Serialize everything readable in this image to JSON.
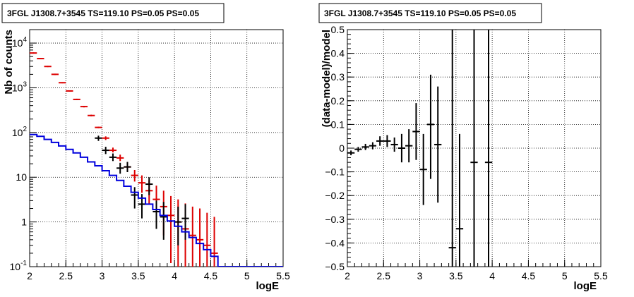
{
  "chart_data": [
    {
      "type": "scatter",
      "title": "3FGL J1308.7+3545 TS=119.10 PS=0.05 PS=0.05",
      "xlabel": "logE",
      "ylabel": "Nb of counts",
      "xlim": [
        2,
        5.5
      ],
      "ylim": [
        0.1,
        20000
      ],
      "yscale": "log",
      "grid": true,
      "x_ticks": [
        "2",
        "2.5",
        "3",
        "3.5",
        "4",
        "4.5",
        "5",
        "5.5"
      ],
      "y_ticks": [
        "10^{-1}",
        "1",
        "10",
        "10^{2}",
        "10^{3}",
        "10^{4}"
      ],
      "series": [
        {
          "color": "#dd0000",
          "style": "points-with-errors",
          "x": [
            2.05,
            2.15,
            2.25,
            2.35,
            2.45,
            2.55,
            2.65,
            2.75,
            2.85,
            2.95,
            3.05,
            3.15,
            3.25,
            3.35,
            3.45,
            3.55,
            3.65,
            3.75,
            3.85,
            3.95,
            4.05,
            4.15,
            4.25,
            4.35,
            4.45,
            4.55
          ],
          "y": [
            6000,
            4500,
            3000,
            2000,
            1300,
            850,
            550,
            380,
            240,
            130,
            75,
            40,
            27,
            17,
            11,
            7.5,
            5,
            3.2,
            2.2,
            1.4,
            1.0,
            0.7,
            0.5,
            0.4,
            0.3,
            0.2
          ],
          "y_low": [
            5800,
            4380,
            2900,
            1930,
            1260,
            820,
            530,
            365,
            230,
            125,
            68,
            36,
            23,
            13,
            8,
            4.5,
            2.5,
            1.3,
            0.5,
            0.12,
            0.1,
            0.1,
            0.1,
            0.1,
            0.1,
            0.1
          ],
          "y_high": [
            6200,
            4620,
            3100,
            2070,
            1340,
            880,
            570,
            395,
            250,
            135,
            82,
            46,
            32,
            22,
            14.5,
            11,
            8.5,
            6.5,
            5,
            3.8,
            3.2,
            2.6,
            2.2,
            2.0,
            1.6,
            1.3
          ]
        },
        {
          "color": "#000000",
          "style": "points-with-errors",
          "x": [
            2.95,
            3.05,
            3.15,
            3.25,
            3.35,
            3.45,
            3.55,
            3.65,
            3.75,
            3.85,
            4.05,
            4.15
          ],
          "y": [
            75,
            40,
            28,
            16,
            17,
            4,
            2.5,
            7,
            1.7,
            1.3,
            1,
            1.2
          ],
          "y_low": [
            65,
            33,
            23,
            12,
            13,
            2,
            1.2,
            4,
            0.7,
            0.4,
            0.3,
            0.4
          ],
          "y_high": [
            85,
            48,
            34,
            21,
            22,
            6,
            4.2,
            10,
            3,
            2.8,
            2.2,
            2.5
          ]
        },
        {
          "color": "#0000dd",
          "style": "step",
          "edges": [
            2.0,
            2.1,
            2.2,
            2.3,
            2.4,
            2.5,
            2.6,
            2.7,
            2.8,
            2.9,
            3.0,
            3.1,
            3.2,
            3.3,
            3.4,
            3.5,
            3.6,
            3.7,
            3.8,
            3.9,
            4.0,
            4.1,
            4.2,
            4.3,
            4.4,
            4.5,
            4.6,
            5.5
          ],
          "values": [
            90,
            82,
            70,
            60,
            50,
            42,
            35,
            28,
            22,
            18,
            14,
            11,
            8.5,
            6.3,
            4.6,
            3.4,
            2.5,
            1.9,
            1.4,
            1.05,
            0.8,
            0.6,
            0.45,
            0.33,
            0.24,
            0.17,
            0.1
          ]
        }
      ]
    },
    {
      "type": "scatter",
      "title": "3FGL J1308.7+3545 TS=119.10 PS=0.05 PS=0.05",
      "xlabel": "logE",
      "ylabel": "(data-model)/model",
      "xlim": [
        2,
        5.5
      ],
      "ylim": [
        -0.5,
        0.5
      ],
      "grid": true,
      "x_ticks": [
        "2",
        "2.5",
        "3",
        "3.5",
        "4",
        "4.5",
        "5",
        "5.5"
      ],
      "y_ticks": [
        "−0.5",
        "−0.4",
        "−0.3",
        "−0.2",
        "−0.1",
        "0",
        "0.1",
        "0.2",
        "0.3",
        "0.4",
        "0.5"
      ],
      "series": [
        {
          "color": "#000000",
          "style": "points-with-errors",
          "x": [
            2.05,
            2.15,
            2.25,
            2.35,
            2.45,
            2.55,
            2.65,
            2.75,
            2.85,
            2.95,
            3.05,
            3.15,
            3.25,
            3.45,
            3.55,
            3.75,
            3.95
          ],
          "y": [
            -0.02,
            -0.005,
            0.005,
            0.01,
            0.03,
            0.03,
            0.015,
            0.0,
            0.01,
            0.07,
            -0.09,
            0.1,
            0.015,
            -0.42,
            -0.34,
            -0.06,
            -0.06
          ],
          "y_low": [
            -0.03,
            -0.015,
            -0.008,
            -0.005,
            0.01,
            0.005,
            -0.015,
            -0.06,
            -0.06,
            -0.05,
            -0.24,
            -0.13,
            -0.23,
            -0.5,
            -0.5,
            -0.5,
            -0.5
          ],
          "y_high": [
            -0.01,
            0.005,
            0.018,
            0.025,
            0.05,
            0.055,
            0.045,
            0.06,
            0.08,
            0.19,
            0.06,
            0.31,
            0.26,
            0.5,
            0.06,
            0.5,
            0.5
          ]
        }
      ]
    }
  ]
}
